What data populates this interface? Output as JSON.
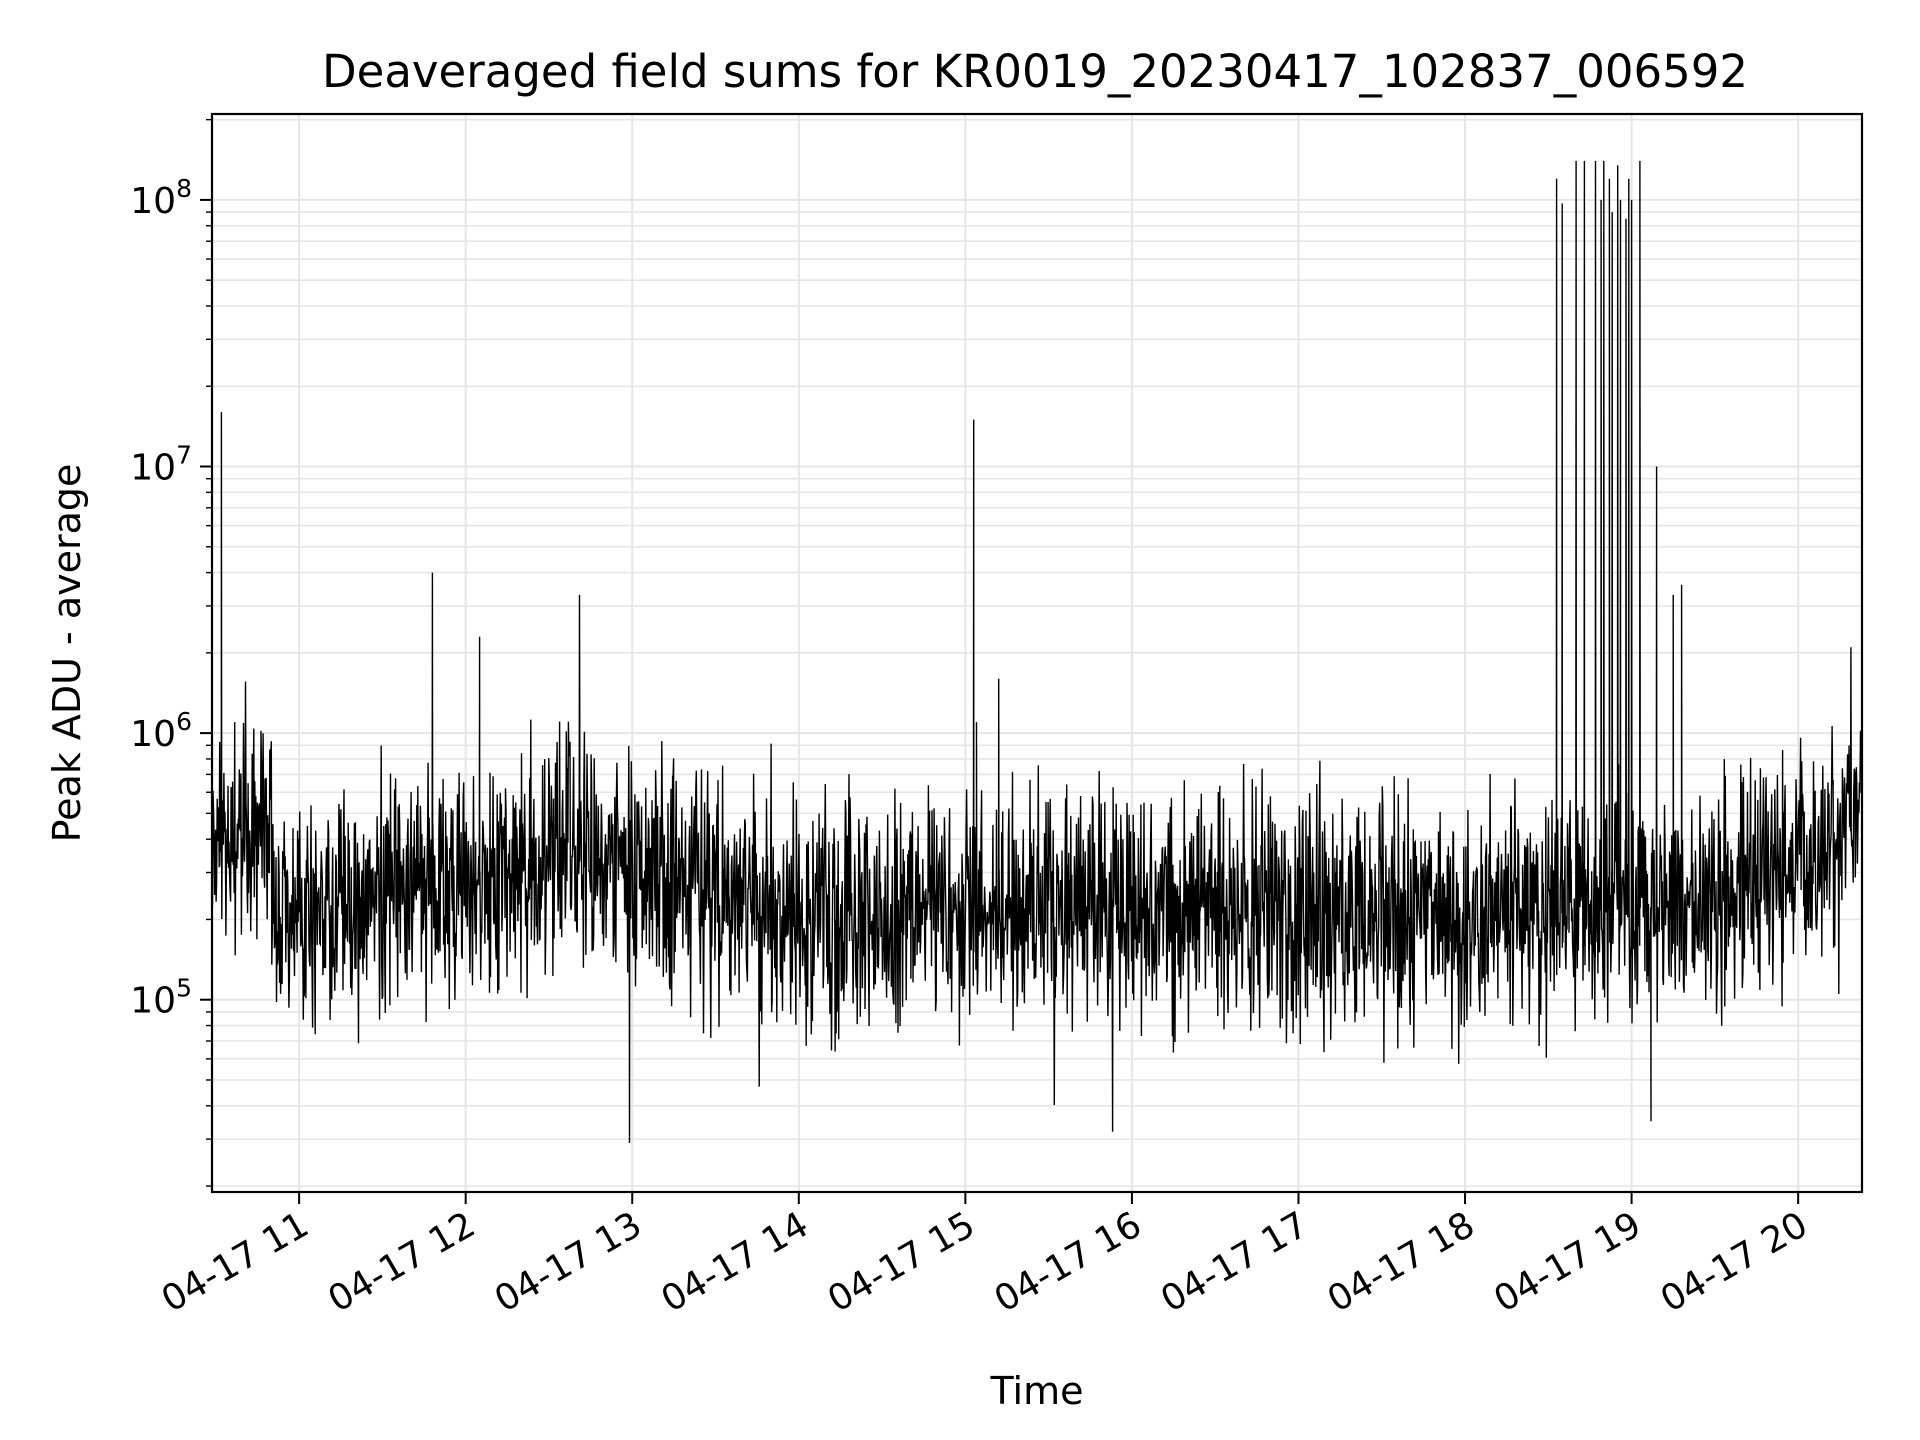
{
  "chart_data": {
    "type": "line",
    "title": "Deaveraged field sums for KR0019_20230417_102837_006592",
    "xlabel": "Time",
    "ylabel": "Peak ADU - average",
    "yscale": "log",
    "ylim": [
      19000,
      210000000
    ],
    "xlim": [
      "2023-04-17 10:28:37",
      "2023-04-17 20:23:00"
    ],
    "grid": true,
    "line_color": "#000000",
    "x_ticks": [
      "2023-04-17 11:00",
      "2023-04-17 12:00",
      "2023-04-17 13:00",
      "2023-04-17 14:00",
      "2023-04-17 15:00",
      "2023-04-17 16:00",
      "2023-04-17 17:00",
      "2023-04-17 18:00",
      "2023-04-17 19:00",
      "2023-04-17 20:00"
    ],
    "x_tick_labels": [
      "04-17 11",
      "04-17 12",
      "04-17 13",
      "04-17 14",
      "04-17 15",
      "04-17 16",
      "04-17 17",
      "04-17 18",
      "04-17 19",
      "04-17 20"
    ],
    "y_ticks": [
      {
        "value": 100000,
        "base": "10",
        "exp": "5"
      },
      {
        "value": 1000000,
        "base": "10",
        "exp": "6"
      },
      {
        "value": 10000000,
        "base": "10",
        "exp": "7"
      },
      {
        "value": 100000000,
        "base": "10",
        "exp": "8"
      }
    ],
    "spikes": [
      {
        "x": "2023-04-17 10:32",
        "y": 16000000
      },
      {
        "x": "2023-04-17 11:48",
        "y": 4000000
      },
      {
        "x": "2023-04-17 12:05",
        "y": 2300000
      },
      {
        "x": "2023-04-17 12:41",
        "y": 3300000
      },
      {
        "x": "2023-04-17 12:59",
        "y": 29000
      },
      {
        "x": "2023-04-17 15:03",
        "y": 15000000
      },
      {
        "x": "2023-04-17 15:04",
        "y": 1100000
      },
      {
        "x": "2023-04-17 15:12",
        "y": 1600000
      },
      {
        "x": "2023-04-17 18:33",
        "y": 120000000
      },
      {
        "x": "2023-04-17 18:35",
        "y": 97000000
      },
      {
        "x": "2023-04-17 18:40",
        "y": 140000000
      },
      {
        "x": "2023-04-17 18:43",
        "y": 140000000
      },
      {
        "x": "2023-04-17 18:47",
        "y": 140000000
      },
      {
        "x": "2023-04-17 18:49",
        "y": 100000000
      },
      {
        "x": "2023-04-17 18:50",
        "y": 140000000
      },
      {
        "x": "2023-04-17 18:52",
        "y": 120000000
      },
      {
        "x": "2023-04-17 18:53",
        "y": 90000000
      },
      {
        "x": "2023-04-17 18:55",
        "y": 135000000
      },
      {
        "x": "2023-04-17 18:56",
        "y": 100000000
      },
      {
        "x": "2023-04-17 18:58",
        "y": 85000000
      },
      {
        "x": "2023-04-17 18:59",
        "y": 120000000
      },
      {
        "x": "2023-04-17 19:00",
        "y": 100000000
      },
      {
        "x": "2023-04-17 19:03",
        "y": 140000000
      },
      {
        "x": "2023-04-17 19:07",
        "y": 35000
      },
      {
        "x": "2023-04-17 19:09",
        "y": 10000000
      },
      {
        "x": "2023-04-17 19:15",
        "y": 3300000
      },
      {
        "x": "2023-04-17 19:18",
        "y": 3600000
      },
      {
        "x": "2023-04-17 20:19",
        "y": 2100000
      }
    ],
    "baseline_segments": [
      {
        "x": "2023-04-17 10:28:37",
        "y": 300000
      },
      {
        "x": "2023-04-17 10:45",
        "y": 500000
      },
      {
        "x": "2023-04-17 10:55",
        "y": 200000
      },
      {
        "x": "2023-04-17 12:30",
        "y": 350000
      },
      {
        "x": "2023-04-17 14:00",
        "y": 220000
      },
      {
        "x": "2023-04-17 16:30",
        "y": 210000
      },
      {
        "x": "2023-04-17 18:00",
        "y": 200000
      },
      {
        "x": "2023-04-17 19:30",
        "y": 230000
      },
      {
        "x": "2023-04-17 20:23:00",
        "y": 450000
      }
    ]
  }
}
